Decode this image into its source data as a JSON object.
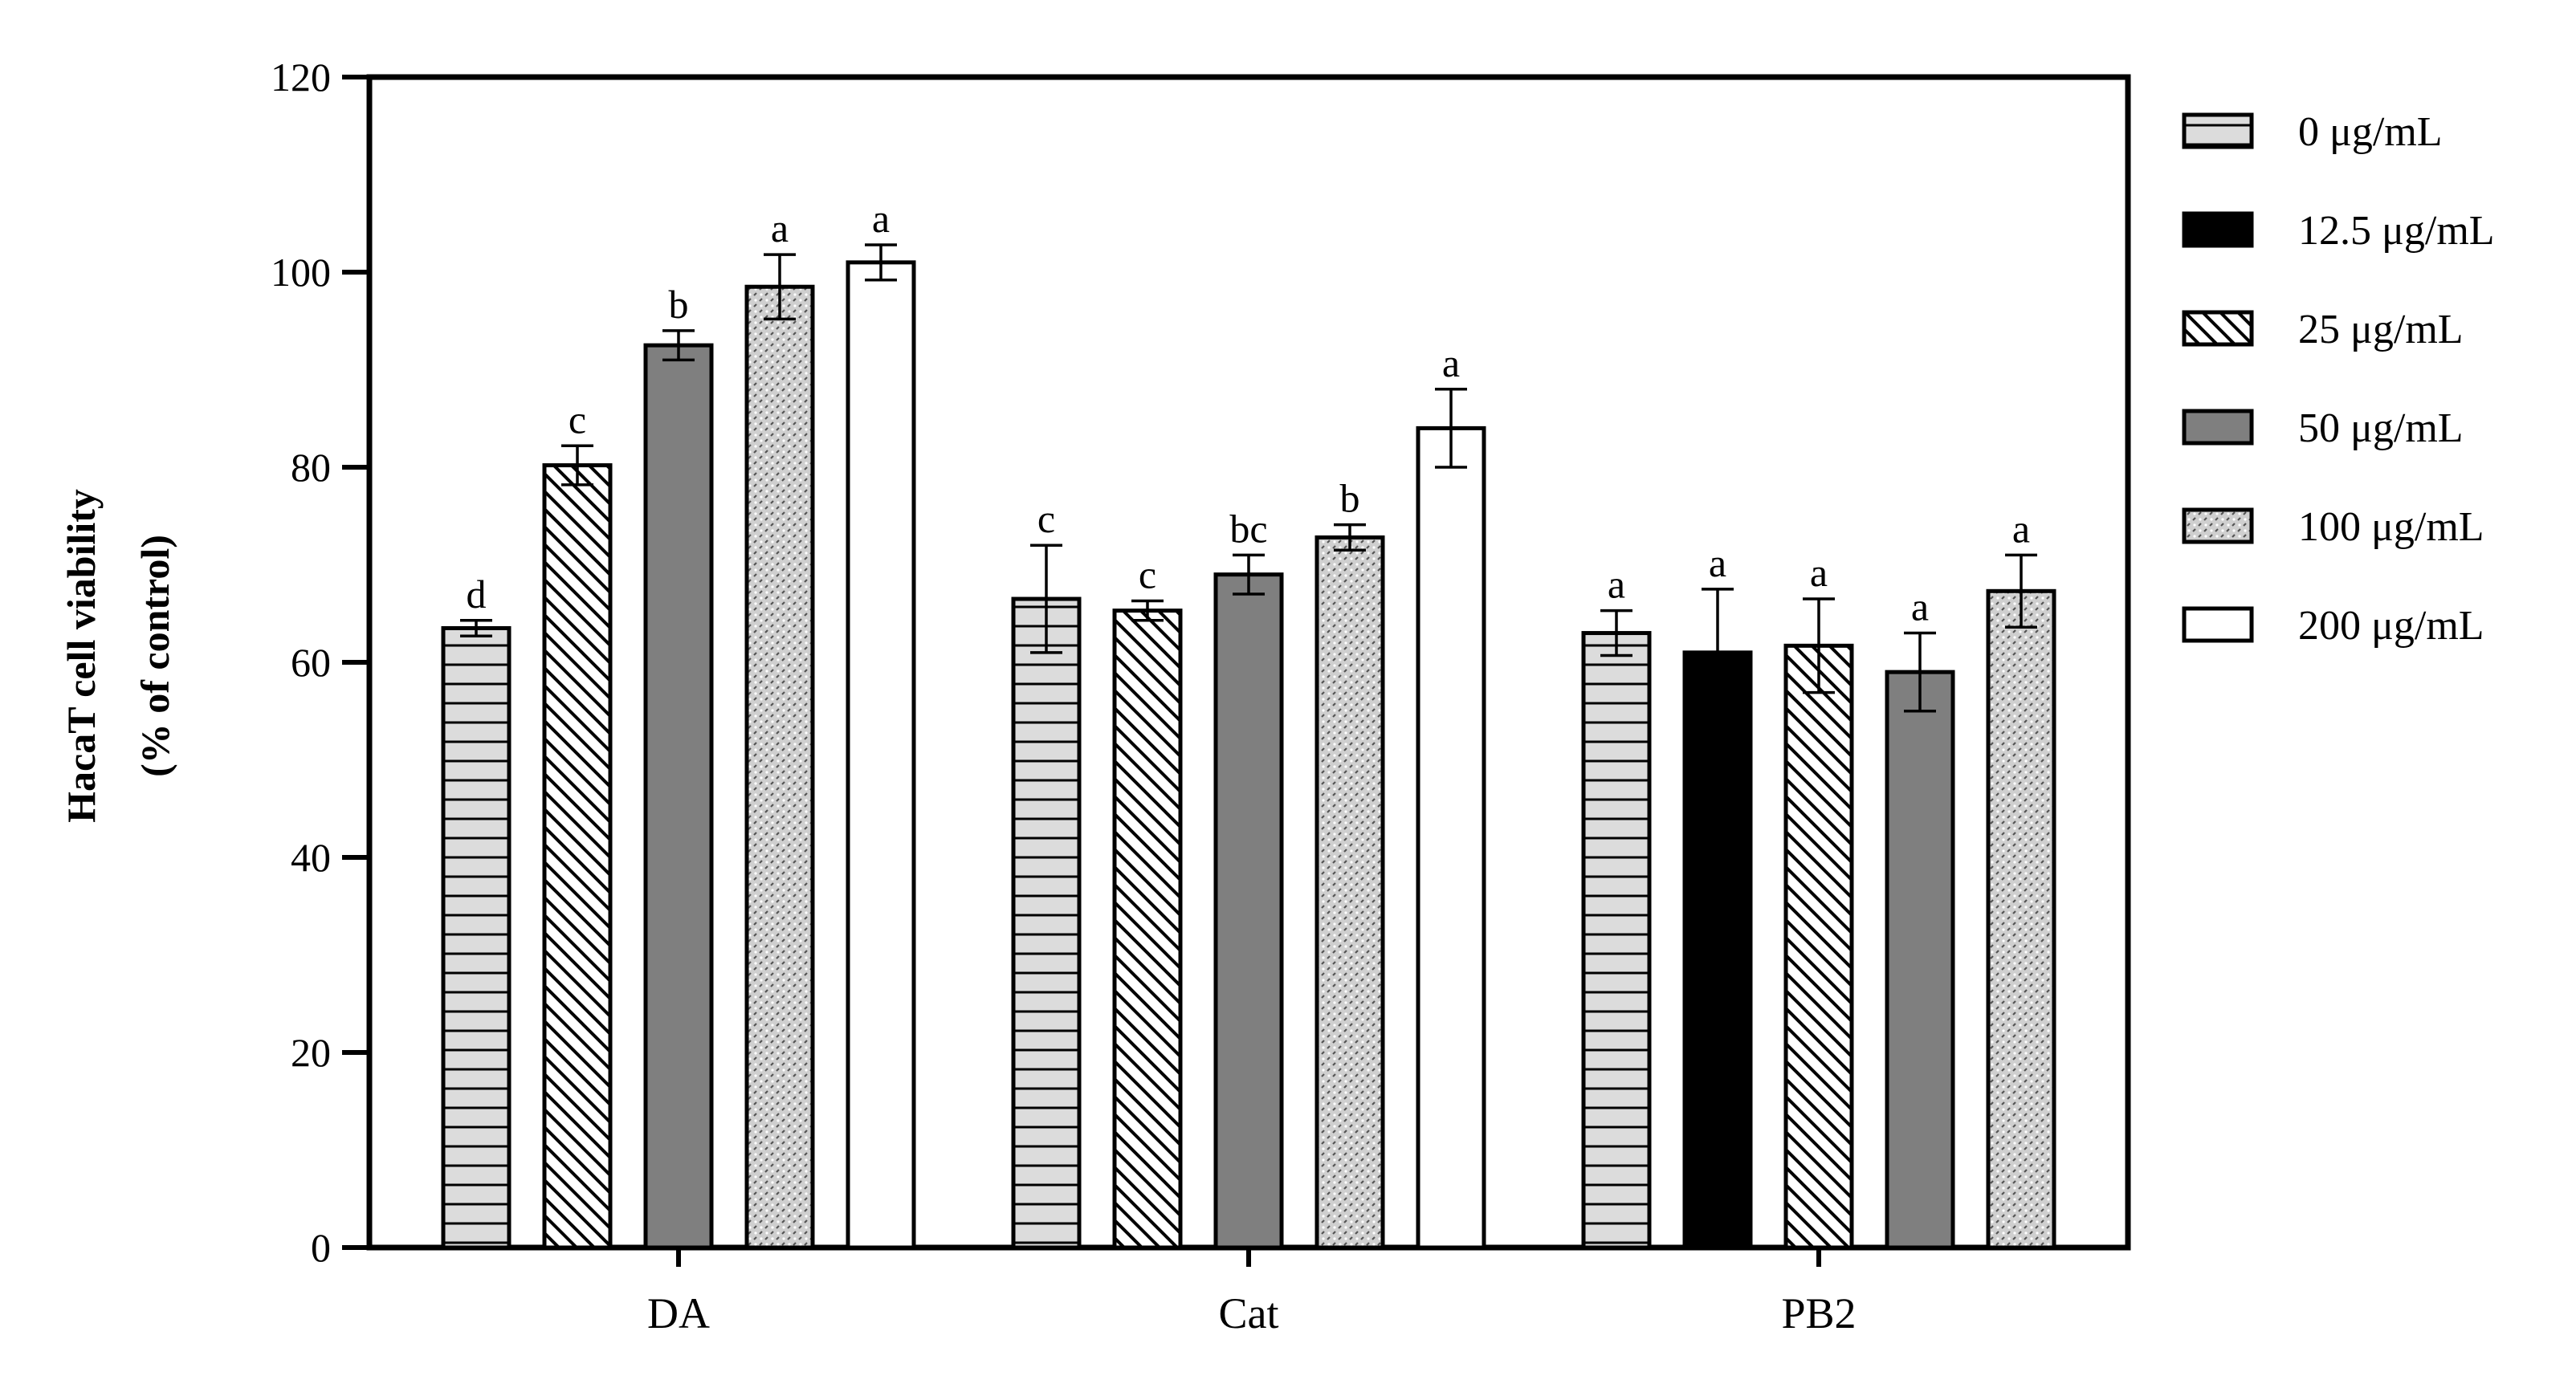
{
  "chart_data": {
    "type": "bar",
    "ylabel_line1": "HacaT cell viability",
    "ylabel_line2": "(% of control)",
    "xlabel": "",
    "ylim": [
      0,
      120
    ],
    "yticks": [
      0,
      20,
      40,
      60,
      80,
      100,
      120
    ],
    "legend_position": "right",
    "categories": [
      "DA",
      "Cat",
      "PB2"
    ],
    "series": [
      {
        "name": "0 μg/mL",
        "pattern": "hlines",
        "fill": "#dcdcdc"
      },
      {
        "name": "12.5 μg/mL",
        "pattern": "solid-black",
        "fill": "#000000"
      },
      {
        "name": "25 μg/mL",
        "pattern": "diagonal",
        "fill": "#ffffff"
      },
      {
        "name": "50 μg/mL",
        "pattern": "solid-gray",
        "fill": "#7f7f7f"
      },
      {
        "name": "100 μg/mL",
        "pattern": "dots",
        "fill": "#d0d0d0"
      },
      {
        "name": "200 μg/mL",
        "pattern": "white",
        "fill": "#ffffff"
      }
    ],
    "groups": [
      {
        "category": "DA",
        "bars": [
          {
            "series": 0,
            "value": 63.5,
            "error": 0.8,
            "letter": "d"
          },
          {
            "series": 2,
            "value": 80.2,
            "error": 2.0,
            "letter": "c"
          },
          {
            "series": 3,
            "value": 92.5,
            "error": 1.5,
            "letter": "b"
          },
          {
            "series": 4,
            "value": 98.5,
            "error": 3.3,
            "letter": "a"
          },
          {
            "series": 5,
            "value": 101.0,
            "error": 1.8,
            "letter": "a"
          }
        ]
      },
      {
        "category": "Cat",
        "bars": [
          {
            "series": 0,
            "value": 66.5,
            "error": 5.5,
            "letter": "c"
          },
          {
            "series": 2,
            "value": 65.3,
            "error": 1.0,
            "letter": "c"
          },
          {
            "series": 3,
            "value": 69.0,
            "error": 2.0,
            "letter": "bc"
          },
          {
            "series": 4,
            "value": 72.8,
            "error": 1.3,
            "letter": "b"
          },
          {
            "series": 5,
            "value": 84.0,
            "error": 4.0,
            "letter": "a"
          }
        ]
      },
      {
        "category": "PB2",
        "bars": [
          {
            "series": 0,
            "value": 63.0,
            "error": 2.3,
            "letter": "a"
          },
          {
            "series": 1,
            "value": 61.0,
            "error": 6.5,
            "letter": "a"
          },
          {
            "series": 2,
            "value": 61.7,
            "error": 4.8,
            "letter": "a"
          },
          {
            "series": 3,
            "value": 59.0,
            "error": 4.0,
            "letter": "a"
          },
          {
            "series": 4,
            "value": 67.3,
            "error": 3.7,
            "letter": "a"
          }
        ]
      }
    ]
  }
}
